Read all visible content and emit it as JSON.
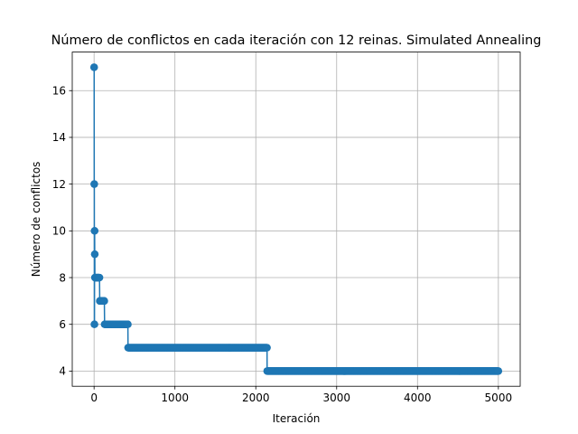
{
  "chart_data": {
    "type": "line",
    "title": "Número de conflictos en cada iteración con 12 reinas. Simulated Annealing",
    "xlabel": "Iteración",
    "ylabel": "Número de conflictos",
    "xlim": [
      -270,
      5270
    ],
    "ylim": [
      3.35,
      17.65
    ],
    "xticks": [
      0,
      1000,
      2000,
      3000,
      4000,
      5000
    ],
    "yticks": [
      4,
      6,
      8,
      10,
      12,
      14,
      16
    ],
    "grid": true,
    "marker": "circle",
    "series": [
      {
        "color": "#1f77b4",
        "steps": [
          {
            "x": 0,
            "y": 17
          },
          {
            "x": 2,
            "y": 12
          },
          {
            "x": 4,
            "y": 6
          },
          {
            "x": 6,
            "y": 10
          },
          {
            "x": 8,
            "y": 9
          },
          {
            "x": 10,
            "y": 8
          },
          {
            "x": 70,
            "y": 7
          },
          {
            "x": 130,
            "y": 6
          },
          {
            "x": 420,
            "y": 5
          },
          {
            "x": 2140,
            "y": 4
          },
          {
            "x": 5000,
            "y": 4
          }
        ]
      }
    ]
  }
}
